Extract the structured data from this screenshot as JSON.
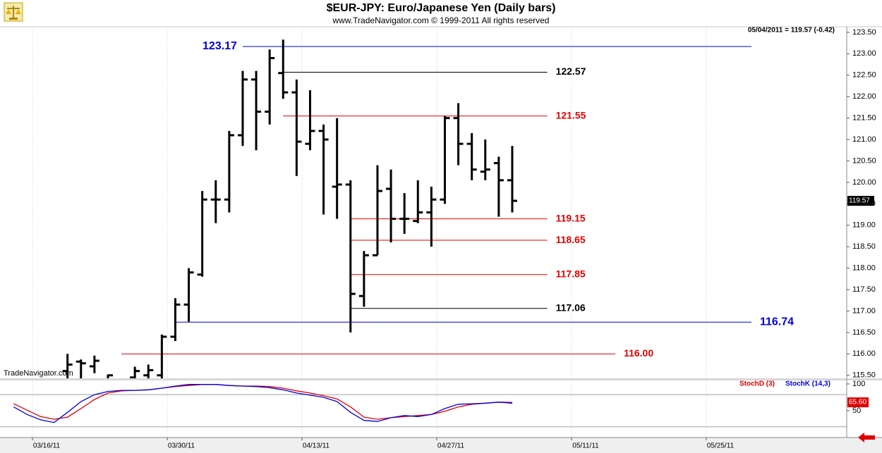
{
  "chart_data": [
    {
      "type": "ohlc",
      "title": "$EUR-JPY:  Euro/Japanese Yen  (Daily bars)",
      "subtitle": "www.TradeNavigator.com © 1999-2011 All rights reserved",
      "header_text": "05/04/2011 = 119.57 (-0.42)",
      "watermark": "TradeNavigator.com",
      "color": "#000000",
      "categories": [
        null,
        null,
        "03/16/11",
        null,
        null,
        null,
        null,
        null,
        null,
        null,
        null,
        null,
        "03/30/11",
        null,
        null,
        null,
        null,
        null,
        null,
        null,
        null,
        null,
        "04/13/11",
        null,
        null,
        null,
        null,
        null,
        null,
        null,
        null,
        null,
        "04/27/11",
        null,
        null,
        null,
        null,
        null,
        null,
        null,
        null,
        null,
        "05/11/11",
        null,
        null,
        null,
        null,
        null,
        null,
        null,
        null,
        null,
        "05/25/11"
      ],
      "open": [
        null,
        null,
        null,
        null,
        115.6,
        115.82,
        115.71,
        115.4,
        null,
        115.45,
        115.5,
        115.5,
        116.4,
        117.15,
        117.85,
        119.6,
        119.6,
        121.1,
        122.4,
        121.65,
        122.55,
        122.1,
        120.9,
        121.2,
        119.9,
        119.95,
        117.35,
        118.3,
        119.85,
        119.15,
        119.1,
        119.3,
        119.6,
        121.5,
        120.9,
        120.25,
        120.45,
        120.05,
        null,
        null,
        null,
        null,
        null,
        null,
        null,
        null,
        null,
        null,
        null,
        null,
        null,
        null,
        null
      ],
      "high": [
        null,
        null,
        null,
        null,
        116.0,
        115.87,
        115.96,
        115.52,
        null,
        115.7,
        115.75,
        116.45,
        117.3,
        118.0,
        119.8,
        120.05,
        121.2,
        122.6,
        122.6,
        123.1,
        123.33,
        122.4,
        122.15,
        121.35,
        121.5,
        120.05,
        118.4,
        120.4,
        120.3,
        119.75,
        120.05,
        119.9,
        121.55,
        121.85,
        121.15,
        121.0,
        120.6,
        120.85,
        null,
        null,
        null,
        null,
        null,
        null,
        null,
        null,
        null,
        null,
        null,
        null,
        null,
        null,
        null
      ],
      "low": [
        null,
        null,
        null,
        null,
        115.3,
        115.3,
        115.55,
        115.3,
        null,
        115.3,
        115.3,
        115.4,
        116.3,
        116.75,
        117.8,
        119.05,
        119.3,
        120.85,
        120.75,
        121.35,
        121.95,
        120.15,
        120.75,
        119.25,
        119.15,
        116.5,
        117.1,
        118.3,
        118.6,
        118.8,
        119.05,
        118.5,
        119.5,
        120.4,
        120.05,
        120.05,
        119.2,
        119.3,
        null,
        null,
        null,
        null,
        null,
        null,
        null,
        null,
        null,
        null,
        null,
        null,
        null,
        null,
        null
      ],
      "close": [
        null,
        null,
        null,
        null,
        115.75,
        115.78,
        115.84,
        115.5,
        null,
        115.6,
        115.62,
        116.4,
        117.15,
        117.9,
        119.6,
        119.6,
        121.1,
        122.4,
        121.65,
        122.9,
        122.1,
        120.95,
        121.2,
        121.0,
        119.95,
        117.4,
        118.3,
        119.8,
        119.15,
        119.15,
        119.3,
        119.6,
        121.5,
        120.9,
        120.3,
        120.3,
        120.05,
        119.57,
        null,
        null,
        null,
        null,
        null,
        null,
        null,
        null,
        null,
        null,
        null,
        null,
        null,
        null,
        null
      ],
      "last_value": 119.57,
      "ylim": [
        115.43,
        123.63
      ],
      "yticks": [
        {
          "value": 115.5,
          "label": "115.50"
        },
        {
          "value": 116,
          "label": "116.00"
        },
        {
          "value": 116.5,
          "label": "116.50"
        },
        {
          "value": 117,
          "label": "117.00"
        },
        {
          "value": 117.5,
          "label": "117.50"
        },
        {
          "value": 118,
          "label": "118.00"
        },
        {
          "value": 118.5,
          "label": "118.50"
        },
        {
          "value": 119,
          "label": "119.00"
        },
        {
          "value": 119.5,
          "label": "119.50"
        },
        {
          "value": 120,
          "label": "120.00"
        },
        {
          "value": 120.5,
          "label": "120.50"
        },
        {
          "value": 121,
          "label": "121.00"
        },
        {
          "value": 121.5,
          "label": "121.50"
        },
        {
          "value": 122,
          "label": "122.00"
        },
        {
          "value": 122.5,
          "label": "122.50"
        },
        {
          "value": 123,
          "label": "123.00"
        },
        {
          "value": 123.5,
          "label": "123.50"
        }
      ],
      "vgrid": true,
      "levels": [
        {
          "value": 123.17,
          "color": "#0000e0",
          "from": 17,
          "to": 54.75,
          "label_side": "left"
        },
        {
          "value": 122.57,
          "color": "#000000",
          "from": 20,
          "to": 39.6,
          "label_side": "right"
        },
        {
          "value": 121.55,
          "color": "#e00000",
          "from": 20,
          "to": 39.6,
          "label_side": "right"
        },
        {
          "value": 119.15,
          "color": "#e00000",
          "from": 25,
          "to": 39.6,
          "label_side": "right"
        },
        {
          "value": 118.65,
          "color": "#e00000",
          "from": 25,
          "to": 39.6,
          "label_side": "right"
        },
        {
          "value": 117.85,
          "color": "#e00000",
          "from": 25,
          "to": 39.6,
          "label_side": "right"
        },
        {
          "value": 117.06,
          "color": "#000000",
          "from": 25,
          "to": 39.6,
          "label_side": "right"
        },
        {
          "value": 116.74,
          "color": "#0000e0",
          "from": 12,
          "to": 54.75,
          "label_side": "right"
        },
        {
          "value": 116,
          "label": "116.00",
          "color": "#e00000",
          "from": 8,
          "to": 44.65,
          "label_side": "right"
        }
      ]
    },
    {
      "type": "line",
      "series": [
        {
          "name": "StochD (3)",
          "color": "#e00000",
          "values": [
            63,
            51,
            39,
            34,
            38,
            54,
            71,
            83,
            87,
            88,
            89,
            92,
            95,
            97,
            99,
            99,
            97,
            96,
            96,
            95,
            92,
            87,
            83,
            78,
            72,
            57,
            38,
            34,
            37,
            39,
            41,
            43,
            49,
            57,
            62,
            64,
            66,
            65.6,
            null,
            null,
            null,
            null,
            null,
            null,
            null,
            null,
            null,
            null,
            null,
            null,
            null,
            null,
            null
          ]
        },
        {
          "name": "StochK (14,3)",
          "color": "#0000e0",
          "values": [
            57,
            43,
            33,
            28,
            47,
            67,
            80,
            86,
            88,
            88,
            89,
            92,
            96,
            99,
            99,
            99,
            97,
            96,
            95,
            93,
            89,
            83,
            79,
            75,
            67,
            47,
            32,
            30,
            37,
            41,
            39,
            43,
            54,
            62,
            63,
            64,
            66,
            64,
            null,
            null,
            null,
            null,
            null,
            null,
            null,
            null,
            null,
            null,
            null,
            null,
            null,
            null,
            null
          ]
        }
      ],
      "last_value": 65.6,
      "last_value_label": "65.60",
      "ylim": [
        0,
        106.5
      ],
      "yticks": [
        100,
        50
      ],
      "reference_lines": [
        80,
        20
      ]
    }
  ]
}
